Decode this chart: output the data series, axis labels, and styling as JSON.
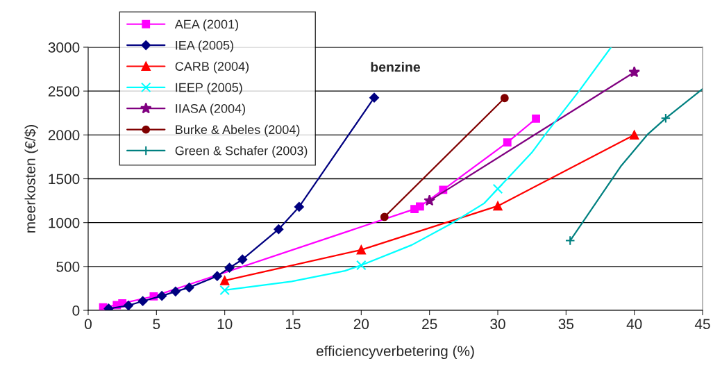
{
  "chart_data": {
    "type": "line",
    "title": "benzine",
    "xlabel": "efficiencyverbetering (%)",
    "ylabel": "meerkosten (€/$)",
    "xlim": [
      0,
      45
    ],
    "xticks": [
      0,
      5,
      10,
      15,
      20,
      25,
      30,
      35,
      40,
      45
    ],
    "ylim": [
      0,
      3000
    ],
    "yticks": [
      0,
      500,
      1000,
      1500,
      2000,
      2500,
      3000
    ],
    "grid": "y",
    "legend": "top left",
    "series": [
      {
        "name": "AEA (2001)",
        "color": "#ff00ff",
        "marker": "square",
        "x": [
          1.1,
          2.1,
          2.5,
          4.8,
          23.9,
          24.3,
          26.0,
          30.7,
          32.8
        ],
        "values": [
          35,
          60,
          80,
          160,
          1155,
          1185,
          1375,
          1915,
          2185
        ]
      },
      {
        "name": "IEA (2005)",
        "color": "#000080",
        "marker": "diamond",
        "x": [
          1.5,
          2.95,
          4.0,
          5.4,
          6.4,
          7.4,
          9.45,
          10.35,
          11.3,
          13.95,
          15.45,
          20.95
        ],
        "values": [
          20,
          55,
          105,
          165,
          215,
          260,
          390,
          485,
          580,
          925,
          1180,
          2425
        ]
      },
      {
        "name": "CARB (2004)",
        "color": "#ff0000",
        "marker": "triangle",
        "x": [
          10,
          20,
          30,
          40
        ],
        "values": [
          340,
          690,
          1190,
          2000
        ]
      },
      {
        "name": "IEEP (2005)",
        "color": "#00ffff",
        "marker": "cross",
        "type": "scatter",
        "x": [
          10,
          20,
          30
        ],
        "values": [
          230,
          515,
          1385
        ]
      },
      {
        "name": "IIASA (2004)",
        "color": "#800080",
        "marker": "star",
        "x": [
          25,
          40
        ],
        "values": [
          1250,
          2715
        ]
      },
      {
        "name": "Burke & Abeles (2004)",
        "color": "#800000",
        "marker": "circle",
        "x": [
          21.7,
          30.5
        ],
        "values": [
          1065,
          2420
        ]
      },
      {
        "name": "Green & Schafer (2003)",
        "color": "#008080",
        "marker": "plus",
        "type": "scatter",
        "x": [
          35.3,
          42.3
        ],
        "values": [
          795,
          2190
        ]
      },
      {
        "color": "#00ffff",
        "marker": "none",
        "x": [
          10,
          14.9,
          18.8,
          20,
          23.7,
          26.6,
          29,
          30,
          32.5,
          33.5,
          36,
          38.3
        ],
        "values": [
          230,
          330,
          450,
          515,
          745,
          990,
          1220,
          1385,
          1800,
          2010,
          2510,
          3000
        ]
      },
      {
        "color": "#008080",
        "marker": "none",
        "x": [
          35.3,
          39.0,
          41.0,
          42.3,
          45
        ],
        "values": [
          795,
          1640,
          2010,
          2190,
          2525
        ]
      }
    ]
  }
}
